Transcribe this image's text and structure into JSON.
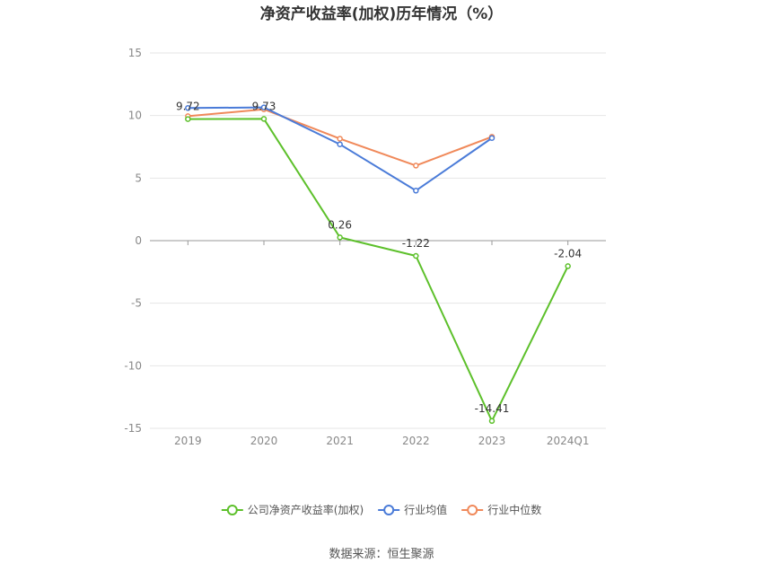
{
  "chart_data": {
    "type": "line",
    "title": "净资产收益率(加权)历年情况（%）",
    "categories": [
      "2019",
      "2020",
      "2021",
      "2022",
      "2023",
      "2024Q1"
    ],
    "ylim": [
      -15,
      15
    ],
    "yticks": [
      "15",
      "10",
      "5",
      "0",
      "-5",
      "-10",
      "-15"
    ],
    "grid": true,
    "legend_position": "bottom",
    "series": [
      {
        "name": "公司净资产收益率(加权)",
        "color": "#5dc02b",
        "values": [
          9.72,
          9.73,
          0.26,
          -1.22,
          -14.41,
          -2.04
        ],
        "labels": [
          "9.72",
          "9.73",
          "0.26",
          "-1.22",
          "-14.41",
          "-2.04"
        ]
      },
      {
        "name": "行业均值",
        "color": "#4a7bd8",
        "values": [
          10.6,
          10.65,
          7.7,
          4.0,
          8.2,
          null
        ]
      },
      {
        "name": "行业中位数",
        "color": "#f0895a",
        "values": [
          9.95,
          10.5,
          8.15,
          6.0,
          8.3,
          null
        ]
      }
    ],
    "source": "数据来源：恒生聚源"
  }
}
